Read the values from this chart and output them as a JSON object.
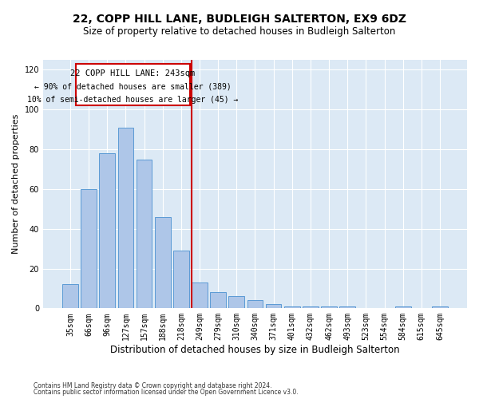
{
  "title": "22, COPP HILL LANE, BUDLEIGH SALTERTON, EX9 6DZ",
  "subtitle": "Size of property relative to detached houses in Budleigh Salterton",
  "xlabel": "Distribution of detached houses by size in Budleigh Salterton",
  "ylabel": "Number of detached properties",
  "footnote1": "Contains HM Land Registry data © Crown copyright and database right 2024.",
  "footnote2": "Contains public sector information licensed under the Open Government Licence v3.0.",
  "categories": [
    "35sqm",
    "66sqm",
    "96sqm",
    "127sqm",
    "157sqm",
    "188sqm",
    "218sqm",
    "249sqm",
    "279sqm",
    "310sqm",
    "340sqm",
    "371sqm",
    "401sqm",
    "432sqm",
    "462sqm",
    "493sqm",
    "523sqm",
    "554sqm",
    "584sqm",
    "615sqm",
    "645sqm"
  ],
  "values": [
    12,
    60,
    78,
    91,
    75,
    46,
    29,
    13,
    8,
    6,
    4,
    2,
    1,
    1,
    1,
    1,
    0,
    0,
    1,
    0,
    1
  ],
  "bar_color": "#aec6e8",
  "bar_edge_color": "#5b9bd5",
  "vline_bin_index": 7,
  "vline_color": "#cc0000",
  "annotation_title": "22 COPP HILL LANE: 243sqm",
  "annotation_line1": "← 90% of detached houses are smaller (389)",
  "annotation_line2": "10% of semi-detached houses are larger (45) →",
  "annotation_box_color": "#cc0000",
  "ylim": [
    0,
    125
  ],
  "yticks": [
    0,
    20,
    40,
    60,
    80,
    100,
    120
  ],
  "background_color": "#dce9f5",
  "title_fontsize": 10,
  "subtitle_fontsize": 8.5,
  "xlabel_fontsize": 8.5,
  "ylabel_fontsize": 8,
  "tick_fontsize": 7,
  "annotation_fontsize": 7.5,
  "footnote_fontsize": 5.5
}
